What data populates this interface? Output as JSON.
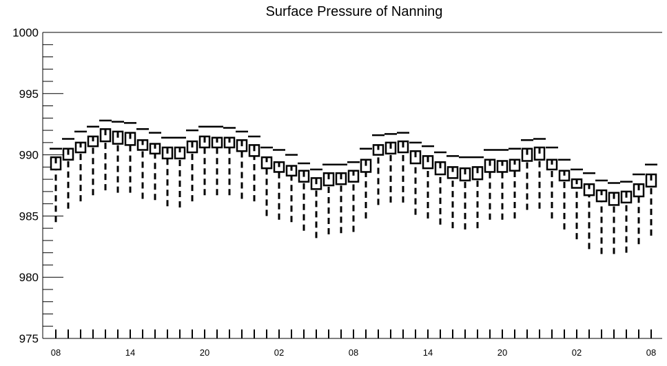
{
  "chart_data": {
    "type": "boxplot",
    "title": "Surface Pressure of Nanning",
    "xlabel": "",
    "ylabel": "",
    "ylim": [
      975,
      1000
    ],
    "yticks": [
      975,
      980,
      985,
      990,
      995,
      1000
    ],
    "yticks_labels": [
      "975",
      "980",
      "985",
      "990",
      "995",
      "1000"
    ],
    "x_tick_labels": [
      "08",
      "14",
      "20",
      "02",
      "08",
      "14",
      "20",
      "02",
      "08"
    ],
    "x_tick_label_index": [
      0,
      6,
      12,
      18,
      24,
      30,
      36,
      42,
      48
    ],
    "grid": false,
    "series": [
      {
        "q1": [
          988.8,
          989.6,
          990.2,
          990.7,
          991.1,
          990.9,
          990.8,
          990.4,
          990.1,
          989.7,
          989.7,
          990.2,
          990.6,
          990.6,
          990.6,
          990.3,
          989.9,
          988.9,
          988.6,
          988.3,
          987.8,
          987.2,
          987.5,
          987.6,
          987.8,
          988.6,
          990.0,
          990.1,
          990.2,
          989.3,
          988.9,
          988.4,
          988.1,
          987.9,
          988.0,
          988.6,
          988.6,
          988.7,
          989.5,
          989.6,
          988.8,
          987.9,
          987.3,
          986.7,
          986.2,
          985.9,
          986.1,
          986.6,
          987.4
        ],
        "median": [
          989.3,
          990.0,
          990.6,
          991.1,
          991.6,
          991.4,
          991.3,
          990.8,
          990.5,
          990.1,
          990.2,
          990.6,
          991.0,
          991.0,
          991.0,
          990.7,
          990.3,
          989.4,
          989.0,
          988.7,
          988.2,
          987.6,
          988.0,
          988.0,
          988.3,
          989.1,
          990.4,
          990.5,
          990.6,
          989.8,
          989.4,
          988.9,
          988.6,
          988.4,
          988.5,
          989.1,
          989.1,
          989.2,
          990.0,
          990.1,
          989.2,
          988.3,
          987.6,
          987.2,
          986.7,
          986.4,
          986.5,
          987.1,
          987.9
        ],
        "q3": [
          989.8,
          990.5,
          991.0,
          991.5,
          992.1,
          991.9,
          991.8,
          991.2,
          990.9,
          990.6,
          990.6,
          991.1,
          991.5,
          991.4,
          991.4,
          991.2,
          990.8,
          989.8,
          989.4,
          989.1,
          988.7,
          988.1,
          988.5,
          988.5,
          988.7,
          989.6,
          990.8,
          991.0,
          991.1,
          990.3,
          989.9,
          989.4,
          989.0,
          988.9,
          989.0,
          989.6,
          989.5,
          989.6,
          990.5,
          990.6,
          989.6,
          988.7,
          988.0,
          987.6,
          987.1,
          986.9,
          987.0,
          987.6,
          988.4
        ],
        "max": [
          990.5,
          991.3,
          991.9,
          992.3,
          992.8,
          992.7,
          992.6,
          992.1,
          991.8,
          991.4,
          991.4,
          992.0,
          992.3,
          992.3,
          992.2,
          991.9,
          991.5,
          990.6,
          990.4,
          990.0,
          989.3,
          988.8,
          989.2,
          989.2,
          989.4,
          990.5,
          991.6,
          991.7,
          991.8,
          991.0,
          990.7,
          990.2,
          989.9,
          989.8,
          989.8,
          990.4,
          990.4,
          990.5,
          991.2,
          991.3,
          990.6,
          989.6,
          988.8,
          988.5,
          987.9,
          987.7,
          987.8,
          988.4,
          989.2
        ],
        "min": [
          984.5,
          985.6,
          986.2,
          986.7,
          987.1,
          986.9,
          986.9,
          986.4,
          986.3,
          985.8,
          985.7,
          986.2,
          986.7,
          986.7,
          986.7,
          986.4,
          986.2,
          985.0,
          984.7,
          984.5,
          983.8,
          983.2,
          983.5,
          983.6,
          983.7,
          984.8,
          985.9,
          986.1,
          986.1,
          985.1,
          984.8,
          984.3,
          984.0,
          983.9,
          984.0,
          984.7,
          984.7,
          984.8,
          985.5,
          985.6,
          984.8,
          983.9,
          983.1,
          982.3,
          981.9,
          981.9,
          982.0,
          982.7,
          983.4
        ]
      }
    ]
  }
}
